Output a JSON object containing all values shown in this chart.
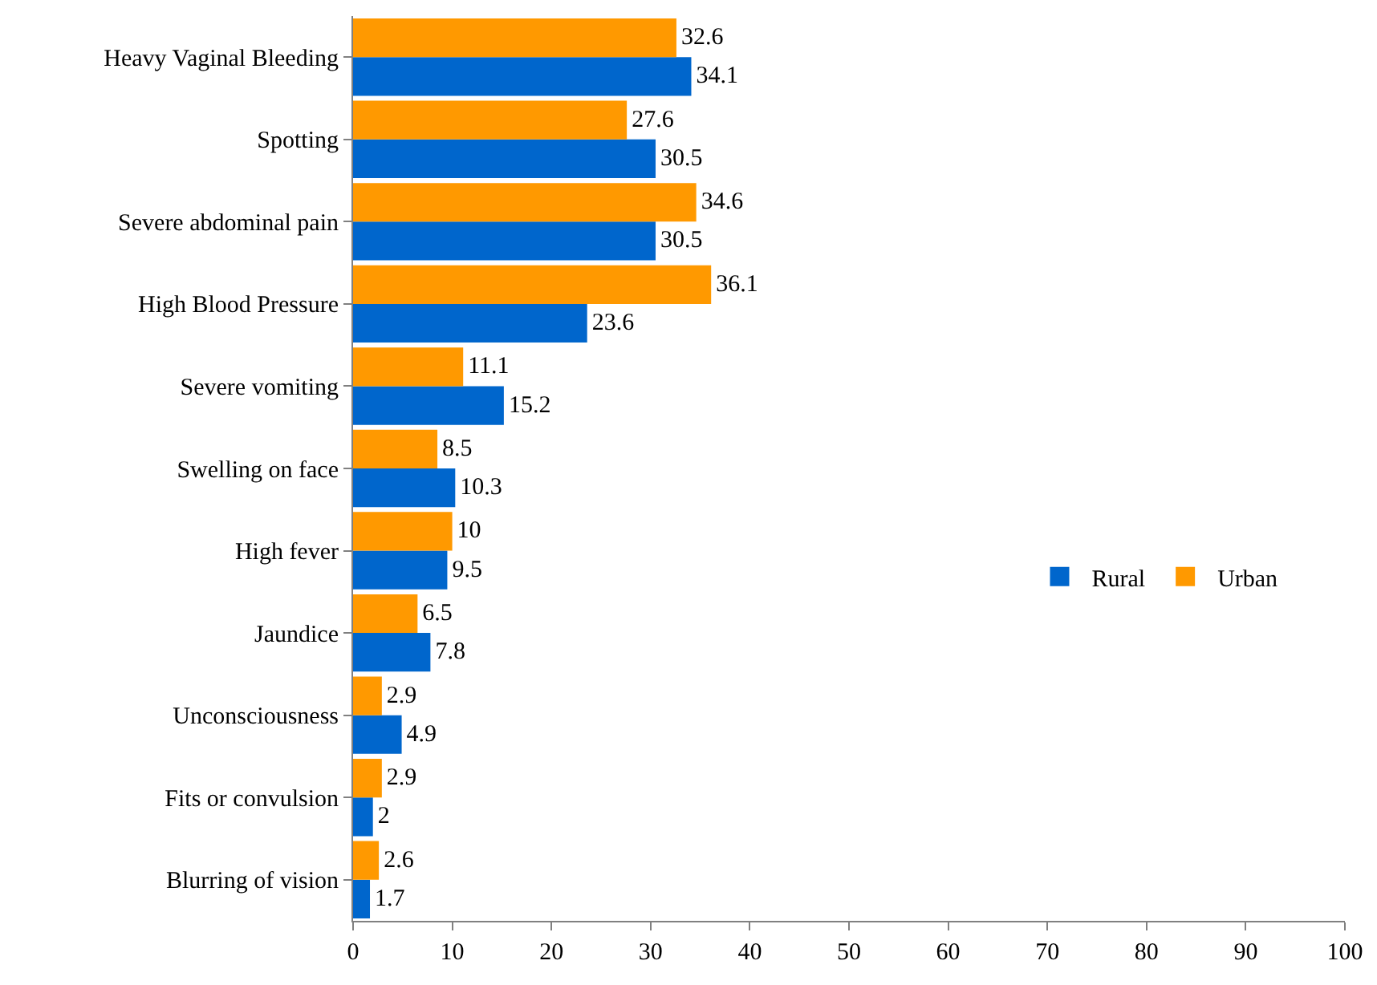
{
  "chart_data": {
    "type": "bar",
    "orientation": "horizontal",
    "categories": [
      "Heavy Vaginal Bleeding",
      "Spotting",
      "Severe abdominal pain",
      "High Blood Pressure",
      "Severe vomiting",
      "Swelling on face",
      "High fever",
      "Jaundice",
      "Unconsciousness",
      "Fits or convulsion",
      "Blurring of vision"
    ],
    "series": [
      {
        "name": "Rural",
        "color": "#0066cc",
        "values": [
          34.1,
          30.5,
          30.5,
          23.6,
          15.2,
          10.3,
          9.5,
          7.8,
          4.9,
          2,
          1.7
        ]
      },
      {
        "name": "Urban",
        "color": "#ff9900",
        "values": [
          32.6,
          27.6,
          34.6,
          36.1,
          11.1,
          8.5,
          10,
          6.5,
          2.9,
          2.9,
          2.6
        ]
      }
    ],
    "xlim": [
      0,
      100
    ],
    "xticks": [
      0,
      10,
      20,
      30,
      40,
      50,
      60,
      70,
      80,
      90,
      100
    ],
    "data_labels": true,
    "legend": "right"
  }
}
